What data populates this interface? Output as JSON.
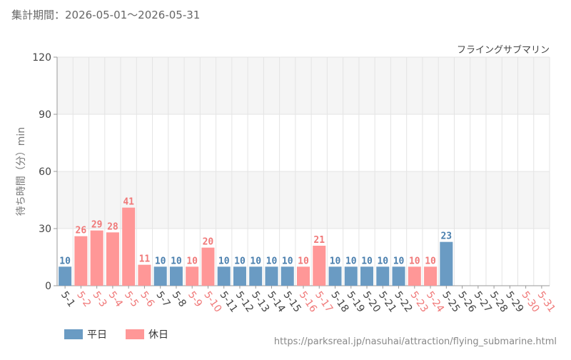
{
  "header": {
    "period_label": "集計期間：2026-05-01〜2026-05-31"
  },
  "footer": {
    "source_url": "https://parksreal.jp/nasuhai/attraction/flying_submarine.html"
  },
  "legend": {
    "weekday_label": "平日",
    "holiday_label": "休日"
  },
  "colors": {
    "weekday": "#6a9bc3",
    "holiday": "#ff9797",
    "weekday_text": "#4a7fae",
    "holiday_text": "#f07878",
    "band": "#f5f5f5",
    "grid": "#e4e4e4",
    "axis": "#999999",
    "text": "#444444"
  },
  "chart_data": {
    "type": "bar",
    "title": "フライングサブマリン",
    "ylabel": "待ち時間（分）min",
    "xlabel": "",
    "ylim": [
      0,
      120
    ],
    "yticks": [
      0,
      30,
      60,
      90,
      120
    ],
    "grid": true,
    "legend_position": "bottom-left",
    "categories": [
      "5-1",
      "5-2",
      "5-3",
      "5-4",
      "5-5",
      "5-6",
      "5-7",
      "5-8",
      "5-9",
      "5-10",
      "5-11",
      "5-12",
      "5-13",
      "5-14",
      "5-15",
      "5-16",
      "5-17",
      "5-18",
      "5-19",
      "5-20",
      "5-21",
      "5-22",
      "5-23",
      "5-24",
      "5-25",
      "5-26",
      "5-27",
      "5-28",
      "5-29",
      "5-30",
      "5-31"
    ],
    "day_type": [
      "weekday",
      "holiday",
      "holiday",
      "holiday",
      "holiday",
      "holiday",
      "weekday",
      "weekday",
      "holiday",
      "holiday",
      "weekday",
      "weekday",
      "weekday",
      "weekday",
      "weekday",
      "holiday",
      "holiday",
      "weekday",
      "weekday",
      "weekday",
      "weekday",
      "weekday",
      "holiday",
      "holiday",
      "weekday",
      "weekday",
      "weekday",
      "weekday",
      "weekday",
      "holiday",
      "holiday"
    ],
    "values": [
      10,
      26,
      29,
      28,
      41,
      11,
      10,
      10,
      10,
      20,
      10,
      10,
      10,
      10,
      10,
      10,
      21,
      10,
      10,
      10,
      10,
      10,
      10,
      10,
      23,
      null,
      null,
      null,
      null,
      null,
      null
    ]
  }
}
